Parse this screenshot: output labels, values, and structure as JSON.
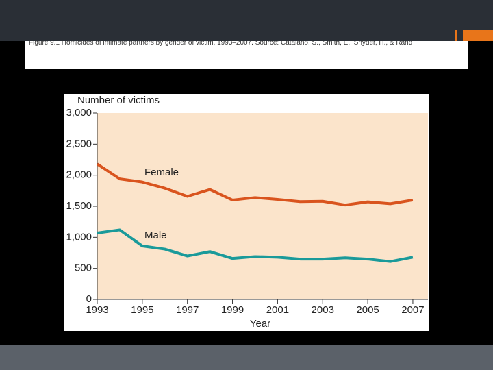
{
  "slide": {
    "caption": "Figure 9.1 Homicides of intimate partners by gender of victim, 1993–2007. Source: Catalano, S., Smith, E., Snyder, H., & Rand"
  },
  "chart_data": {
    "type": "line",
    "y_label": "Number of victims",
    "x_label": "Year",
    "x": [
      1993,
      1994,
      1995,
      1996,
      1997,
      1998,
      1999,
      2000,
      2001,
      2002,
      2003,
      2004,
      2005,
      2006,
      2007
    ],
    "series": [
      {
        "name": "Female",
        "color": "#d9541e",
        "values": [
          2180,
          1940,
          1890,
          1790,
          1660,
          1770,
          1600,
          1640,
          1610,
          1575,
          1580,
          1520,
          1570,
          1540,
          1600
        ]
      },
      {
        "name": "Male",
        "color": "#1a9a9a",
        "values": [
          1070,
          1120,
          860,
          810,
          700,
          770,
          660,
          690,
          680,
          650,
          650,
          670,
          650,
          610,
          680
        ]
      }
    ],
    "xlim": [
      1993,
      2007.67
    ],
    "xticks": [
      1993,
      1995,
      1997,
      1999,
      2001,
      2003,
      2005,
      2007
    ],
    "ylim": [
      0,
      3000
    ],
    "yticks": [
      0,
      500,
      {
        "value": 1000,
        "label": "1,000"
      },
      {
        "value": 1500,
        "label": "1,500"
      },
      {
        "value": 2000,
        "label": "2,000"
      },
      {
        "value": 2500,
        "label": "2,500"
      },
      {
        "value": 3000,
        "label": "3,000"
      }
    ]
  }
}
